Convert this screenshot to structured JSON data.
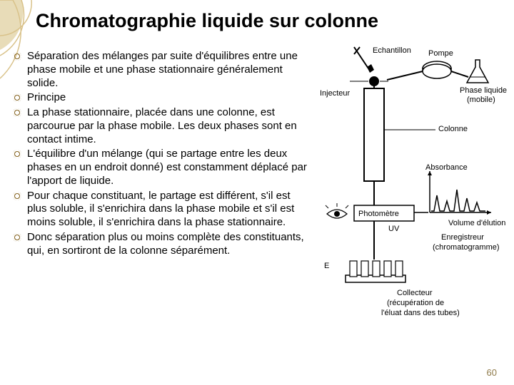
{
  "title": "Chromatographie liquide sur colonne",
  "bullets": [
    "Séparation des mélanges par suite d'équilibres entre une phase mobile et une phase stationnaire généralement solide.",
    "Principe",
    "La phase stationnaire, placée dans une colonne, est parcourue par la phase mobile. Les deux phases sont en contact intime.",
    "L'équilibre d'un mélange (qui se partage entre les deux phases en un endroit donné) est constamment déplacé par l'apport de liquide.",
    "Pour chaque constituant, le partage est différent, s'il est plus soluble, il s'enrichira dans la phase mobile et s'il est moins soluble, il s'enrichira dans la phase stationnaire.",
    "Donc séparation plus ou moins complète des constituants, qui, en sortiront de la colonne séparément."
  ],
  "diagram": {
    "labels": {
      "echantillon": "Echantillon",
      "pompe": "Pompe",
      "injecteur": "Injecteur",
      "phase_liquide": "Phase liquide",
      "mobile": "(mobile)",
      "colonne": "Colonne",
      "absorbance": "Absorbance",
      "photometre": "Photomètre",
      "uv": "UV",
      "volume_elution": "Volume d'élution",
      "enregistreur": "Enregistreur",
      "chromatogramme": "(chromatogramme)",
      "collecteur": "Collecteur",
      "recup1": "(récupération de",
      "recup2": "l'éluat dans des tubes)"
    },
    "stroke": "#000000",
    "fill_bg": "#ffffff",
    "chromatogram": {
      "peaks_x": [
        10,
        24,
        38,
        52,
        66
      ],
      "peaks_h": [
        22,
        14,
        30,
        18,
        12
      ]
    }
  },
  "page_number": "60",
  "colors": {
    "decor": "#d9c28a",
    "decor_light": "#e8dcb8",
    "pagenum": "#8f7a4a"
  }
}
